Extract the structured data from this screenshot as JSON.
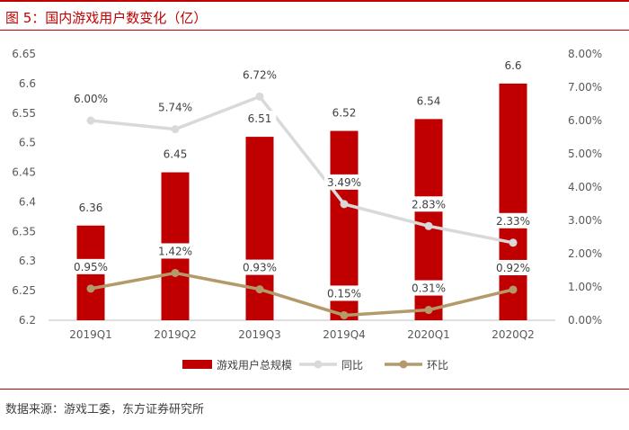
{
  "header": {
    "title": "图 5：国内游戏用户数变化（亿）"
  },
  "footer": {
    "source": "数据来源：游戏工委，东方证券研究所"
  },
  "chart_data": {
    "type": "bar",
    "title": "图 5：国内游戏用户数变化（亿）",
    "categories": [
      "2019Q1",
      "2019Q2",
      "2019Q3",
      "2019Q4",
      "2020Q1",
      "2020Q2"
    ],
    "series": [
      {
        "name": "游戏用户总规模",
        "kind": "bar",
        "axis": "left",
        "values": [
          6.36,
          6.45,
          6.51,
          6.52,
          6.54,
          6.6
        ],
        "labels": [
          "6.36",
          "6.45",
          "6.51",
          "6.52",
          "6.54",
          "6.6"
        ],
        "color": "#c00000"
      },
      {
        "name": "同比",
        "kind": "line",
        "axis": "right",
        "values": [
          6.0,
          5.74,
          6.72,
          3.49,
          2.83,
          2.33
        ],
        "labels": [
          "6.00%",
          "5.74%",
          "6.72%",
          "3.49%",
          "2.83%",
          "2.33%"
        ],
        "color": "#d9d9d9"
      },
      {
        "name": "环比",
        "kind": "line",
        "axis": "right",
        "values": [
          0.95,
          1.42,
          0.93,
          0.15,
          0.31,
          0.92
        ],
        "labels": [
          "0.95%",
          "1.42%",
          "0.93%",
          "0.15%",
          "0.31%",
          "0.92%"
        ],
        "color": "#b49a6a"
      }
    ],
    "yleft": {
      "min": 6.2,
      "max": 6.65,
      "ticks": [
        "6.2",
        "6.25",
        "6.3",
        "6.35",
        "6.4",
        "6.45",
        "6.5",
        "6.55",
        "6.6",
        "6.65"
      ]
    },
    "yright": {
      "min": 0,
      "max": 8,
      "ticks": [
        "0.00%",
        "1.00%",
        "2.00%",
        "3.00%",
        "4.00%",
        "5.00%",
        "6.00%",
        "7.00%",
        "8.00%"
      ]
    },
    "legend": {
      "position": "bottom"
    }
  }
}
